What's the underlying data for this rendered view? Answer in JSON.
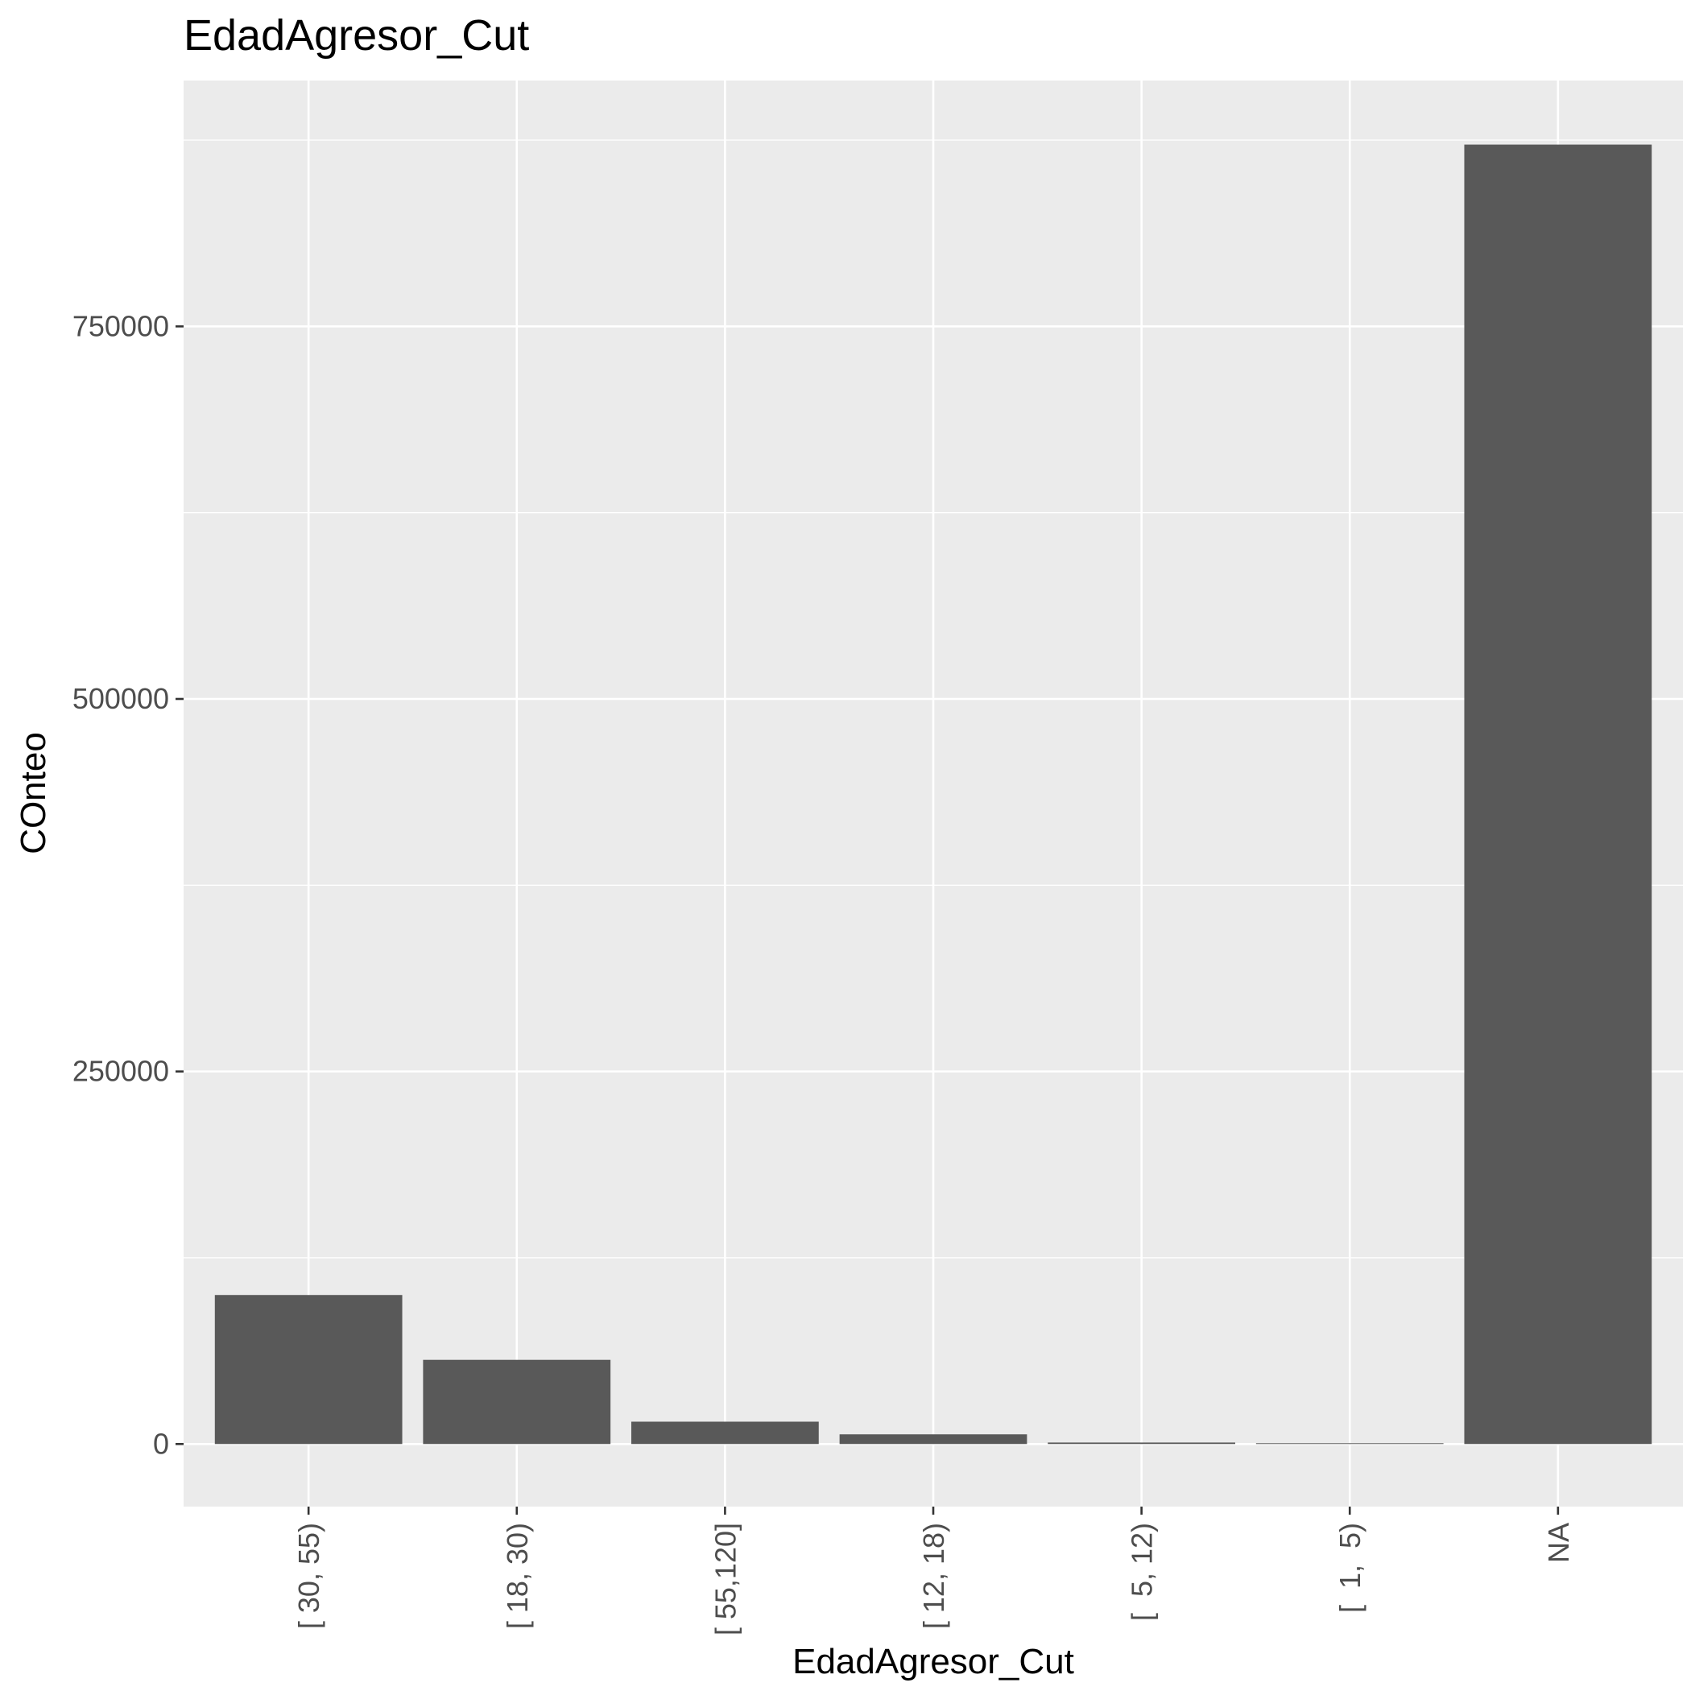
{
  "chart_data": {
    "type": "bar",
    "title": "EdadAgresor_Cut",
    "xlabel": "EdadAgresor_Cut",
    "ylabel": "COnteo",
    "categories": [
      "[ 30, 55)",
      "[ 18, 30)",
      "[ 55,120]",
      "[ 12, 18)",
      "[  5, 12)",
      "[  1,  5)",
      "NA"
    ],
    "values": [
      100000,
      56500,
      15000,
      6500,
      1000,
      200,
      872000
    ],
    "ylim": [
      -42000,
      915000
    ],
    "yticks": [
      0,
      250000,
      500000,
      750000
    ],
    "ytick_labels": [
      "0",
      "250000",
      "500000",
      "750000"
    ],
    "grid": true,
    "legend": "none",
    "colors": {
      "panel": "#ebebeb",
      "bar": "#595959",
      "grid": "#ffffff"
    }
  }
}
